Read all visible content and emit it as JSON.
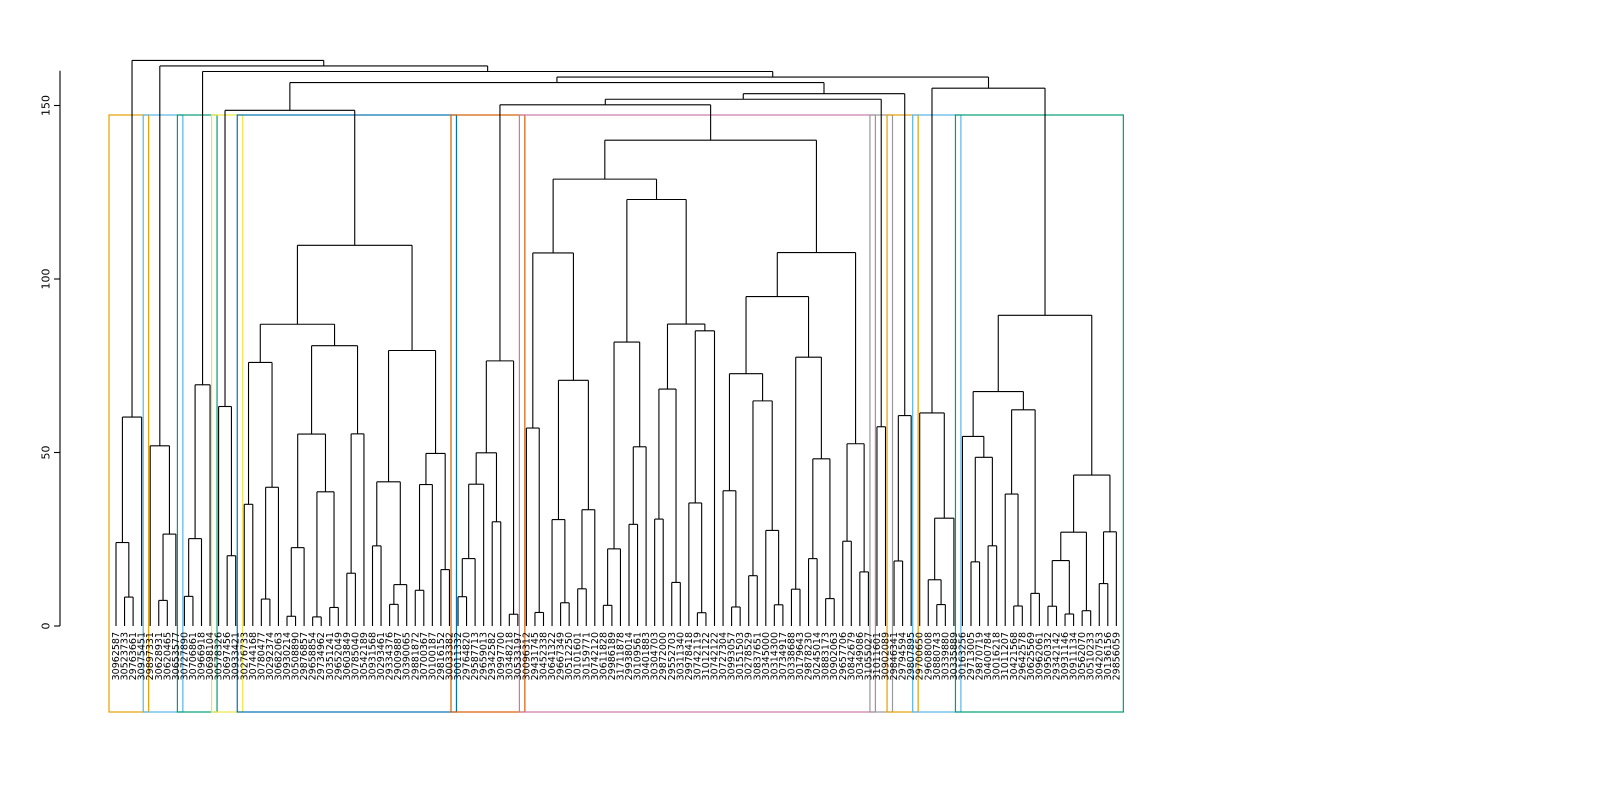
{
  "chart_data": {
    "type": "dendrogram",
    "title": "",
    "xlabel": "",
    "ylabel": "",
    "ylim": [
      0,
      160
    ],
    "y_ticks": [
      0,
      50,
      100,
      150
    ],
    "grid": false,
    "legend": "none",
    "clusters": [
      {
        "color": "#E69F00",
        "leaves": [
          "30962587",
          "30523733",
          "29763661",
          "30975451"
        ]
      },
      {
        "color": "#56B4E9",
        "leaves": [
          "29897331",
          "30628931",
          "30620465",
          "30653577"
        ]
      },
      {
        "color": "#009E73",
        "leaves": [
          "30727890",
          "30706861",
          "30966918",
          "30698104"
        ]
      },
      {
        "color": "#F0E442",
        "leaves": [
          "30578326",
          "30697456",
          "30933421"
        ]
      },
      {
        "color": "#0072B2",
        "leaves": [
          "30276733",
          "30744168",
          "30780477",
          "30292374",
          "30682063",
          "30930214",
          "30508890",
          "29876857",
          "29658854",
          "29734962",
          "30351241",
          "29652049",
          "30603849",
          "30785040",
          "30542189",
          "30931568",
          "30293461",
          "29334376",
          "29009887",
          "30390065",
          "29881872",
          "30700367",
          "30100187",
          "29816152",
          "30033382"
        ]
      },
      {
        "color": "#D55E00",
        "leaves": [
          "30011332",
          "29764820",
          "29587713",
          "29659013",
          "29342582",
          "30997700",
          "30348218",
          "30533197"
        ]
      },
      {
        "color": "#CC79A7",
        "leaves": [
          "30096312",
          "29431745",
          "30452338",
          "30641322",
          "29667349",
          "30512250",
          "30101601",
          "30159771",
          "30742120",
          "30611828",
          "29986189",
          "31711878",
          "29938014",
          "30109561",
          "30401883",
          "30304703",
          "29872000",
          "29552703",
          "30311340",
          "29978418",
          "30742119",
          "31012122",
          "30742122",
          "30727304",
          "30993057",
          "30151503",
          "30278529",
          "30837651",
          "30345000",
          "30314300",
          "30734917",
          "30338688",
          "30179643",
          "29878230",
          "30245014",
          "30883173",
          "30902063",
          "29657706",
          "30842679",
          "30349086",
          "31055027"
        ]
      },
      {
        "color": "#999999",
        "leaves": [
          "31011601",
          "30902089"
        ]
      },
      {
        "color": "#E69F00",
        "leaves": [
          "29846341",
          "29794594",
          "29807895"
        ]
      },
      {
        "color": "#56B4E9",
        "leaves": [
          "29700650",
          "29608008",
          "30880743",
          "30339880",
          "30335889"
        ]
      },
      {
        "color": "#009E73",
        "leaves": [
          "30163256",
          "29713005",
          "29870719",
          "30400784",
          "30016218",
          "31011207",
          "30421568",
          "29642578",
          "30625569",
          "30962061",
          "30950332",
          "29342142",
          "30931146",
          "30911134",
          "30562070",
          "30510233",
          "30420753",
          "30136156",
          "29856059"
        ]
      }
    ]
  }
}
